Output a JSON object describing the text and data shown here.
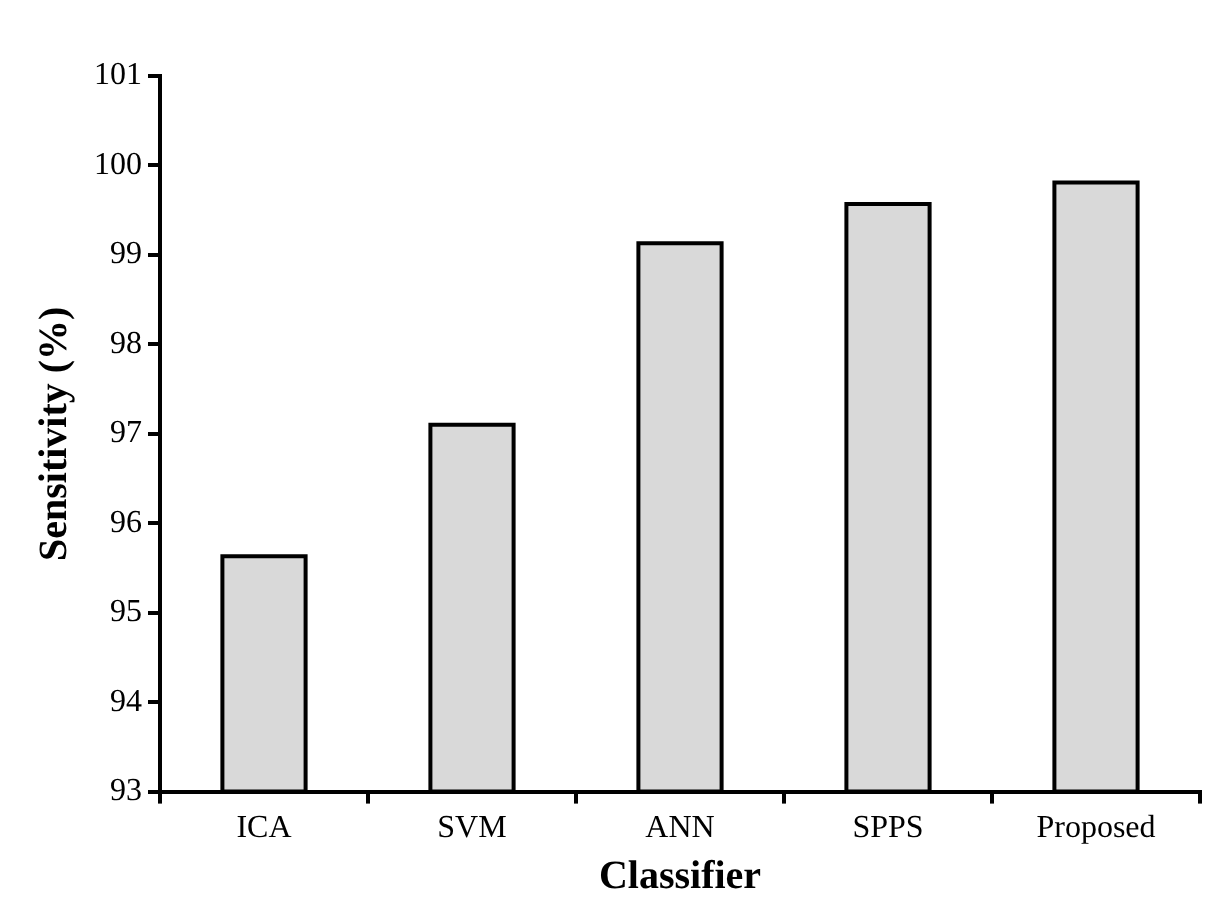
{
  "chart_data": {
    "type": "bar",
    "xlabel": "Classifier",
    "ylabel": "Sensitivity (%)",
    "categories": [
      "ICA",
      "SVM",
      "ANN",
      "SPPS",
      "Proposed"
    ],
    "values": [
      95.63,
      97.1,
      99.13,
      99.57,
      99.81
    ],
    "color": "#d9d9d9",
    "ylim": [
      93,
      101
    ],
    "yticks": [
      93,
      94,
      95,
      96,
      97,
      98,
      99,
      100,
      101
    ],
    "grid": false,
    "legend": false
  }
}
